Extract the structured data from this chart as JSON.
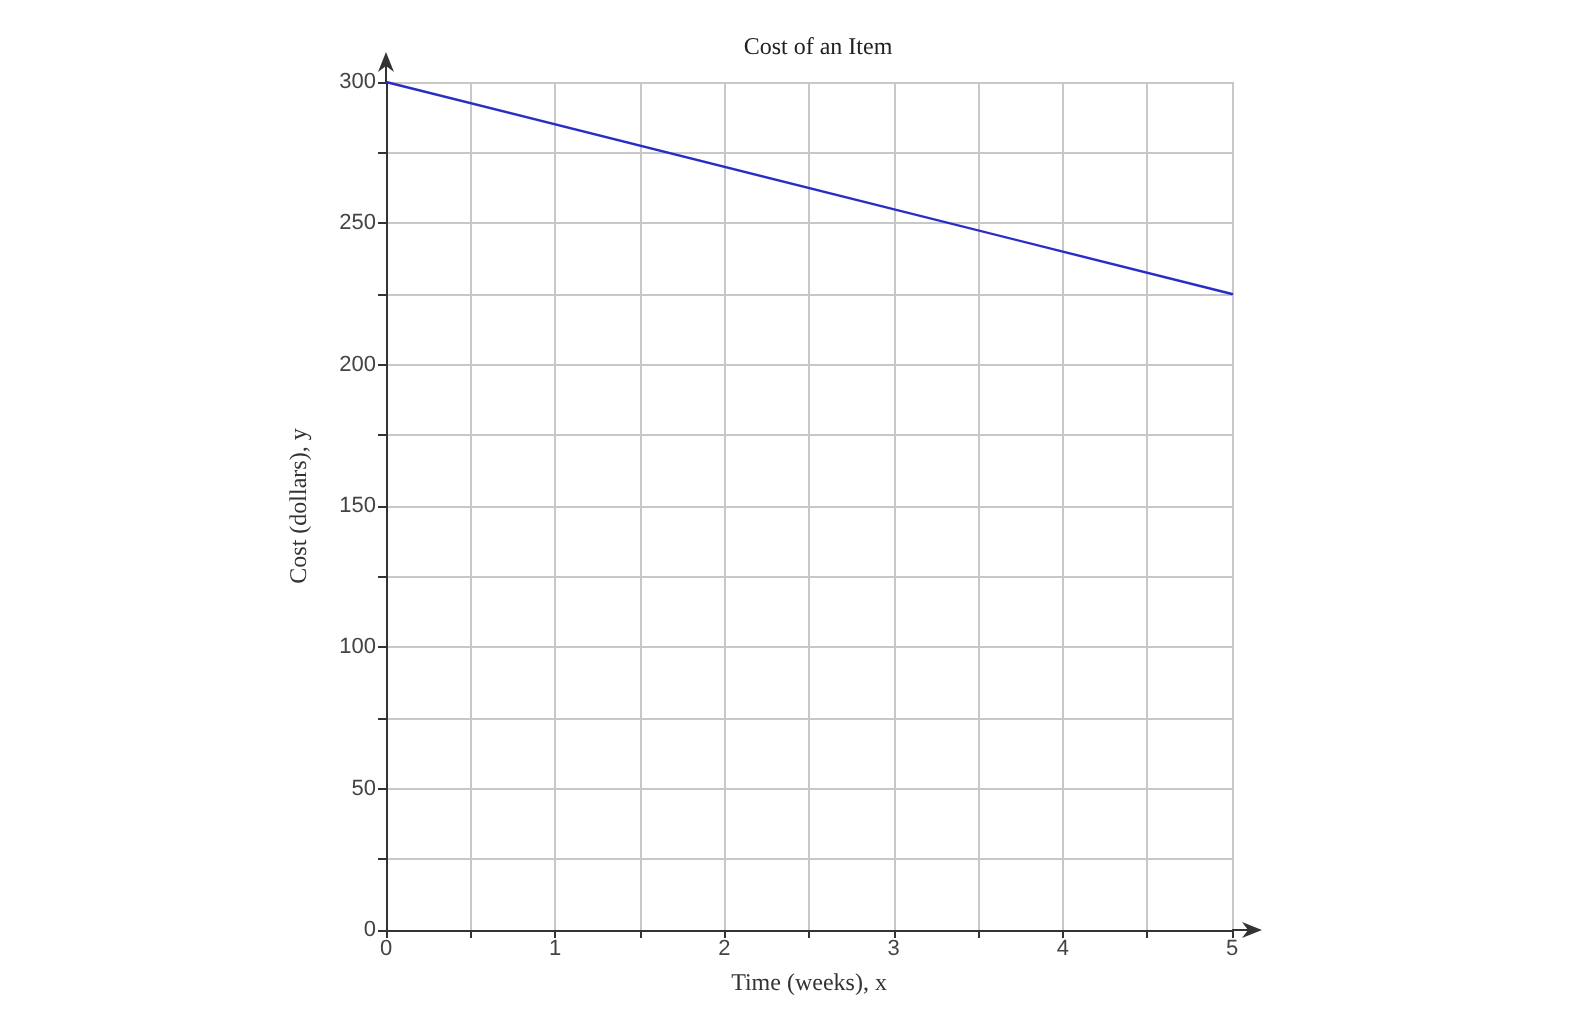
{
  "chart_data": {
    "type": "line",
    "title": "Cost of an Item",
    "xlabel": "Time (weeks), x",
    "ylabel": "Cost (dollars), y",
    "x": [
      0,
      5
    ],
    "series": [
      {
        "color": "#2b2bc8",
        "values": [
          300,
          225
        ]
      }
    ],
    "xlim": [
      0,
      5
    ],
    "ylim": [
      0,
      300
    ],
    "xticks": [
      0,
      {
        "value": 0.5,
        "label": null
      },
      1,
      {
        "value": 1.5,
        "label": null
      },
      2,
      {
        "value": 2.5,
        "label": null
      },
      3,
      {
        "value": 3.5,
        "label": null
      },
      4,
      {
        "value": 4.5,
        "label": null
      },
      5
    ],
    "yticks": [
      0,
      {
        "value": 25,
        "label": null
      },
      50,
      {
        "value": 75,
        "label": null
      },
      100,
      {
        "value": 125,
        "label": null
      },
      150,
      {
        "value": 175,
        "label": null
      },
      200,
      {
        "value": 225,
        "label": null
      },
      250,
      {
        "value": 275,
        "label": null
      },
      300
    ],
    "grid": true,
    "marker": "none",
    "line_style": "solid"
  }
}
